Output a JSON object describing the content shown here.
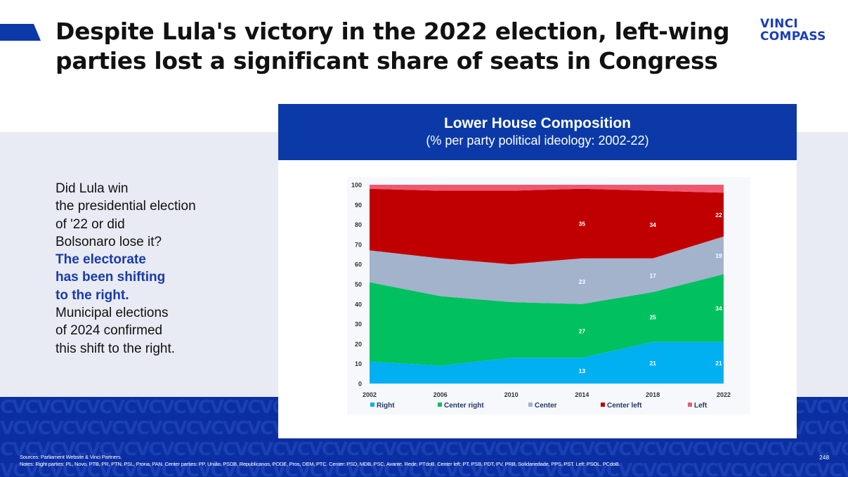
{
  "slide": {
    "title": "Despite Lula's victory in the 2022 election, left-wing parties lost a significant share of seats in Congress",
    "logo_line1": "VINCI",
    "logo_line2": "COMPASS",
    "page_number": "248"
  },
  "left_text": {
    "lines_plain": [
      "Did Lula win",
      "the presidential election",
      "of '22 or did",
      "Bolsonaro lose it?"
    ],
    "lines_highlight": [
      "The electorate",
      "has been shifting",
      "to the right."
    ],
    "lines_after": [
      "Municipal elections",
      "of 2024 confirmed",
      "this shift to the right."
    ]
  },
  "chart_header": {
    "title": "Lower House Composition",
    "subtitle": "(% per party political ideology: 2002-22)"
  },
  "footnotes": {
    "sources": "Sources: Parliament Website & Vinci Partners.",
    "notes": "Notes: Right parties: PL, Novo, PTB, PR, PTN, PSL, Prona, PAN. Center parties: PP, União, PSDB, Republicanos, PODE, Pros, DEM, PTC. Center: PSD, MDB, PSC, Avante, Rede, PTdoB. Center left: PT, PSB, PDT, PV, PRB, Solidariedade, PPS, PST. Left: PSOL, PCdoB."
  },
  "colors": {
    "brand_blue": "#0b3aa8",
    "right": "#00b0f0",
    "center_right": "#00c060",
    "center": "#a3b3cc",
    "center_left": "#c00000",
    "left": "#f05870"
  },
  "chart_data": {
    "type": "area",
    "stacked": true,
    "title": "Lower House Composition",
    "subtitle": "(% per party political ideology: 2002-22)",
    "x": [
      2002,
      2006,
      2010,
      2014,
      2018,
      2022
    ],
    "x_ticks": [
      "2002",
      "2006",
      "2010",
      "2014",
      "2018",
      "2022"
    ],
    "ylim": [
      0,
      100
    ],
    "y_ticks": [
      0,
      10,
      20,
      30,
      40,
      50,
      60,
      70,
      80,
      90,
      100
    ],
    "grid": false,
    "legend": "bottom",
    "series": [
      {
        "name": "Right",
        "color": "#00b0f0",
        "values": [
          11,
          9,
          13,
          13,
          21,
          21
        ]
      },
      {
        "name": "Center right",
        "color": "#00c060",
        "values": [
          40,
          35,
          28,
          27,
          25,
          34
        ]
      },
      {
        "name": "Center",
        "color": "#a3b3cc",
        "values": [
          16,
          19,
          19,
          23,
          17,
          19
        ]
      },
      {
        "name": "Center left",
        "color": "#c00000",
        "values": [
          31,
          34,
          37,
          35,
          34,
          22
        ]
      },
      {
        "name": "Left",
        "color": "#f05870",
        "values": [
          2,
          3,
          3,
          2,
          3,
          4
        ]
      }
    ],
    "data_labels": [
      {
        "series": "Right",
        "x": 2014,
        "value": "13"
      },
      {
        "series": "Right",
        "x": 2018,
        "value": "21"
      },
      {
        "series": "Right",
        "x": 2022,
        "value": "21"
      },
      {
        "series": "Center right",
        "x": 2014,
        "value": "27"
      },
      {
        "series": "Center right",
        "x": 2018,
        "value": "25"
      },
      {
        "series": "Center right",
        "x": 2022,
        "value": "34"
      },
      {
        "series": "Center",
        "x": 2014,
        "value": "23"
      },
      {
        "series": "Center",
        "x": 2018,
        "value": "17"
      },
      {
        "series": "Center",
        "x": 2022,
        "value": "19"
      },
      {
        "series": "Center left",
        "x": 2014,
        "value": "35"
      },
      {
        "series": "Center left",
        "x": 2018,
        "value": "34"
      },
      {
        "series": "Center left",
        "x": 2022,
        "value": "22"
      }
    ]
  }
}
